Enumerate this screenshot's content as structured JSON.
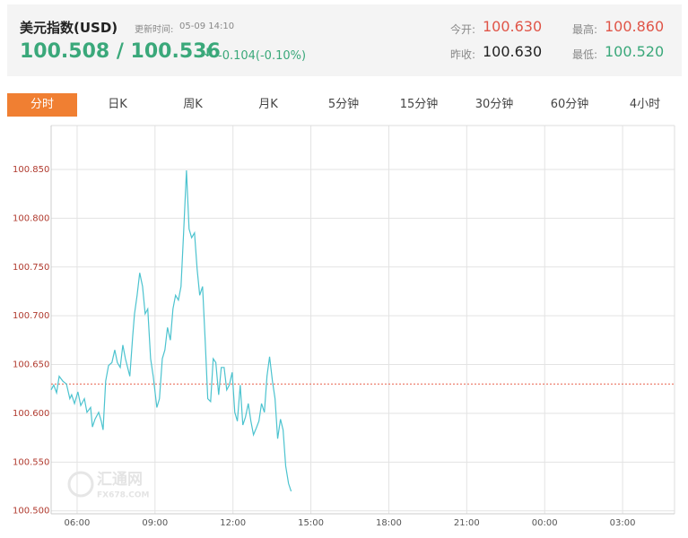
{
  "header": {
    "title": "美元指数(USD)",
    "update_label": "更新时间:",
    "update_time": "05-09 14:10",
    "price": "100.508 / 100.536",
    "arrow": "↓",
    "change": "-0.104(-0.10%)",
    "open_label": "今开:",
    "open": "100.630",
    "prev_close_label": "昨收:",
    "prev_close": "100.630",
    "high_label": "最高:",
    "high": "100.860",
    "low_label": "最低:",
    "low": "100.520"
  },
  "tabs": {
    "items": [
      "分时",
      "日K",
      "周K",
      "月K",
      "5分钟",
      "15分钟",
      "30分钟",
      "60分钟",
      "4小时"
    ],
    "active": 0
  },
  "watermark": {
    "name": "汇通网",
    "site": "FX678.COM"
  },
  "chart_data": {
    "type": "line",
    "color": "#4cc3cf",
    "x": [
      5.0,
      5.1,
      5.21,
      5.31,
      5.45,
      5.59,
      5.72,
      5.79,
      5.9,
      6.03,
      6.14,
      6.28,
      6.38,
      6.52,
      6.59,
      6.69,
      6.83,
      6.93,
      7.0,
      7.1,
      7.21,
      7.34,
      7.45,
      7.55,
      7.66,
      7.76,
      7.86,
      8.03,
      8.14,
      8.21,
      8.31,
      8.41,
      8.52,
      8.62,
      8.72,
      8.83,
      8.93,
      9.07,
      9.17,
      9.28,
      9.38,
      9.48,
      9.59,
      9.69,
      9.79,
      9.9,
      10.0,
      10.1,
      10.21,
      10.31,
      10.41,
      10.52,
      10.62,
      10.72,
      10.83,
      10.93,
      11.03,
      11.14,
      11.24,
      11.34,
      11.45,
      11.55,
      11.66,
      11.76,
      11.86,
      11.97,
      12.07,
      12.17,
      12.28,
      12.38,
      12.48,
      12.59,
      12.69,
      12.79,
      12.9,
      13.0,
      13.1,
      13.21,
      13.31,
      13.41,
      13.52,
      13.62,
      13.72,
      13.83,
      13.93,
      14.03,
      14.14,
      14.24
    ],
    "values": [
      100.624,
      100.629,
      100.621,
      100.638,
      100.633,
      100.63,
      100.615,
      100.619,
      100.61,
      100.622,
      100.608,
      100.615,
      100.601,
      100.606,
      100.586,
      100.594,
      100.601,
      100.592,
      100.583,
      100.633,
      100.649,
      100.652,
      100.665,
      100.652,
      100.647,
      100.67,
      100.656,
      100.638,
      100.679,
      100.702,
      100.721,
      100.744,
      100.73,
      100.702,
      100.707,
      100.656,
      100.638,
      100.606,
      100.615,
      100.656,
      100.665,
      100.688,
      100.675,
      100.707,
      100.721,
      100.716,
      100.73,
      100.785,
      100.849,
      100.789,
      100.78,
      100.785,
      100.748,
      100.721,
      100.73,
      100.675,
      100.615,
      100.612,
      100.656,
      100.652,
      100.619,
      100.647,
      100.647,
      100.624,
      100.629,
      100.642,
      100.601,
      100.592,
      100.629,
      100.588,
      100.596,
      100.61,
      100.592,
      100.578,
      100.585,
      100.592,
      100.61,
      100.601,
      100.638,
      100.658,
      100.633,
      100.615,
      100.574,
      100.594,
      100.583,
      100.546,
      100.528,
      100.52
    ],
    "reference_value": 100.63,
    "reference_color": "#e8604c",
    "xlim": [
      5,
      29
    ],
    "xticks": [
      {
        "value": 6,
        "label": "06:00"
      },
      {
        "value": 9,
        "label": "09:00"
      },
      {
        "value": 12,
        "label": "12:00"
      },
      {
        "value": 15,
        "label": "15:00"
      },
      {
        "value": 18,
        "label": "18:00"
      },
      {
        "value": 21,
        "label": "21:00"
      },
      {
        "value": 24,
        "label": "00:00"
      },
      {
        "value": 27,
        "label": "03:00"
      }
    ],
    "ylim": [
      100.497,
      100.895
    ],
    "yticks": [
      {
        "value": 100.5,
        "label": "100.500"
      },
      {
        "value": 100.55,
        "label": "100.550"
      },
      {
        "value": 100.6,
        "label": "100.600"
      },
      {
        "value": 100.65,
        "label": "100.650"
      },
      {
        "value": 100.7,
        "label": "100.700"
      },
      {
        "value": 100.75,
        "label": "100.750"
      },
      {
        "value": 100.8,
        "label": "100.800"
      },
      {
        "value": 100.85,
        "label": "100.850"
      }
    ],
    "grid": true
  }
}
